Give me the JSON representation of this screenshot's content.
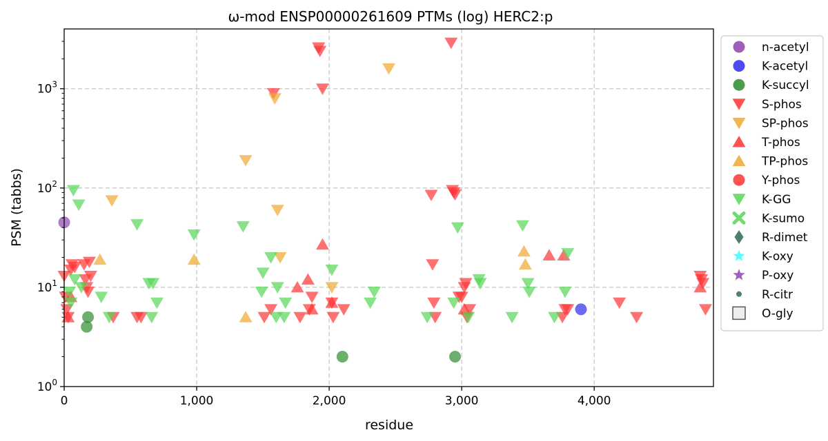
{
  "chart_data": {
    "type": "scatter",
    "title": "ω-mod ENSP00000261609 PTMs (log) HERC2:p",
    "xlabel": "residue",
    "ylabel": "PSM (tabbs)",
    "xlim": [
      0,
      4900
    ],
    "ylim": [
      1,
      4000
    ],
    "yscale": "log",
    "grid": true,
    "legend_position": "outside-right",
    "x_ticks": [
      {
        "value": 0,
        "label": "0"
      },
      {
        "value": 1000,
        "label": "1,000"
      },
      {
        "value": 2000,
        "label": "2,000"
      },
      {
        "value": 3000,
        "label": "3,000"
      },
      {
        "value": 4000,
        "label": "4,000"
      }
    ],
    "y_ticks": [
      {
        "value": 1,
        "base": "10",
        "exp": "0"
      },
      {
        "value": 10,
        "base": "10",
        "exp": "1"
      },
      {
        "value": 100,
        "base": "10",
        "exp": "2"
      },
      {
        "value": 1000,
        "base": "10",
        "exp": "3"
      }
    ],
    "series": [
      {
        "name": "n-acetyl",
        "marker": "circle",
        "color": "#8e44ad",
        "points": [
          [
            0,
            45
          ]
        ]
      },
      {
        "name": "K-acetyl",
        "marker": "circle",
        "color": "#2b2bf0",
        "points": [
          [
            3900,
            6
          ]
        ]
      },
      {
        "name": "K-succyl",
        "marker": "circle",
        "color": "#2e8b2e",
        "points": [
          [
            170,
            4
          ],
          [
            180,
            5
          ],
          [
            2100,
            2
          ],
          [
            2950,
            2
          ]
        ]
      },
      {
        "name": "S-phos",
        "marker": "triangle-down",
        "color": "#ff3333",
        "points": [
          [
            0,
            13
          ],
          [
            10,
            8
          ],
          [
            20,
            6
          ],
          [
            30,
            5
          ],
          [
            50,
            15
          ],
          [
            60,
            17
          ],
          [
            80,
            16
          ],
          [
            150,
            17
          ],
          [
            160,
            12
          ],
          [
            170,
            10
          ],
          [
            180,
            9
          ],
          [
            190,
            18
          ],
          [
            200,
            13
          ],
          [
            370,
            5
          ],
          [
            550,
            5
          ],
          [
            580,
            5
          ],
          [
            1580,
            900
          ],
          [
            1920,
            2600
          ],
          [
            1930,
            2400
          ],
          [
            1950,
            1000
          ],
          [
            1510,
            5
          ],
          [
            1560,
            6
          ],
          [
            1780,
            5
          ],
          [
            1850,
            6
          ],
          [
            1870,
            8
          ],
          [
            2020,
            7
          ],
          [
            2030,
            5
          ],
          [
            2110,
            6
          ],
          [
            2770,
            85
          ],
          [
            2780,
            17
          ],
          [
            2790,
            7
          ],
          [
            2800,
            5
          ],
          [
            2920,
            2900
          ],
          [
            2930,
            95
          ],
          [
            2940,
            90
          ],
          [
            2950,
            86
          ],
          [
            2980,
            8
          ],
          [
            3000,
            8
          ],
          [
            3020,
            10
          ],
          [
            3030,
            11
          ],
          [
            3040,
            5
          ],
          [
            3060,
            6
          ],
          [
            3760,
            5
          ],
          [
            3780,
            6
          ],
          [
            3800,
            6
          ],
          [
            4190,
            7
          ],
          [
            4320,
            5
          ],
          [
            4800,
            13
          ],
          [
            4810,
            12
          ],
          [
            4820,
            11
          ],
          [
            4840,
            6
          ]
        ]
      },
      {
        "name": "SP-phos",
        "marker": "triangle-down",
        "color": "#f0a830",
        "points": [
          [
            360,
            75
          ],
          [
            1370,
            190
          ],
          [
            1590,
            800
          ],
          [
            1610,
            60
          ],
          [
            1630,
            20
          ],
          [
            2020,
            10
          ],
          [
            2450,
            1600
          ]
        ]
      },
      {
        "name": "T-phos",
        "marker": "triangle-up",
        "color": "#ff3333",
        "points": [
          [
            30,
            5
          ],
          [
            50,
            8
          ],
          [
            1760,
            10
          ],
          [
            1840,
            12
          ],
          [
            1870,
            6
          ],
          [
            1950,
            27
          ],
          [
            2020,
            7
          ],
          [
            3020,
            6
          ],
          [
            3660,
            21
          ],
          [
            3770,
            21
          ],
          [
            4800,
            10
          ]
        ]
      },
      {
        "name": "TP-phos",
        "marker": "triangle-up",
        "color": "#f0a830",
        "points": [
          [
            270,
            19
          ],
          [
            980,
            19
          ],
          [
            1370,
            5
          ],
          [
            3470,
            23
          ],
          [
            3480,
            17
          ]
        ]
      },
      {
        "name": "Y-phos",
        "marker": "circle",
        "color": "#ff3333",
        "points": []
      },
      {
        "name": "K-GG",
        "marker": "triangle-down",
        "color": "#55d655",
        "points": [
          [
            40,
            9
          ],
          [
            50,
            7
          ],
          [
            70,
            95
          ],
          [
            80,
            12
          ],
          [
            110,
            68
          ],
          [
            130,
            10
          ],
          [
            280,
            8
          ],
          [
            340,
            5
          ],
          [
            550,
            43
          ],
          [
            640,
            11
          ],
          [
            660,
            5
          ],
          [
            670,
            11
          ],
          [
            700,
            7
          ],
          [
            980,
            34
          ],
          [
            1350,
            41
          ],
          [
            1490,
            9
          ],
          [
            1500,
            14
          ],
          [
            1560,
            20
          ],
          [
            1600,
            5
          ],
          [
            1610,
            10
          ],
          [
            1660,
            5
          ],
          [
            1670,
            7
          ],
          [
            2020,
            15
          ],
          [
            2310,
            7
          ],
          [
            2340,
            9
          ],
          [
            2740,
            5
          ],
          [
            2940,
            7
          ],
          [
            2970,
            40
          ],
          [
            3050,
            5
          ],
          [
            3130,
            12
          ],
          [
            3140,
            11
          ],
          [
            3380,
            5
          ],
          [
            3460,
            42
          ],
          [
            3500,
            11
          ],
          [
            3510,
            9
          ],
          [
            3700,
            5
          ],
          [
            3780,
            9
          ],
          [
            3800,
            22
          ]
        ]
      },
      {
        "name": "K-sumo",
        "marker": "x",
        "color": "#55d655",
        "points": []
      },
      {
        "name": "R-dimet",
        "marker": "diamond",
        "color": "#2f6b4f",
        "points": []
      },
      {
        "name": "K-oxy",
        "marker": "star",
        "color": "#33ffff",
        "points": []
      },
      {
        "name": "P-oxy",
        "marker": "star",
        "color": "#8e44ad",
        "points": []
      },
      {
        "name": "R-citr",
        "marker": "small-circle",
        "color": "#2f6b4f",
        "points": []
      },
      {
        "name": "O-gly",
        "marker": "square-open",
        "color": "#555555",
        "points": []
      }
    ]
  }
}
